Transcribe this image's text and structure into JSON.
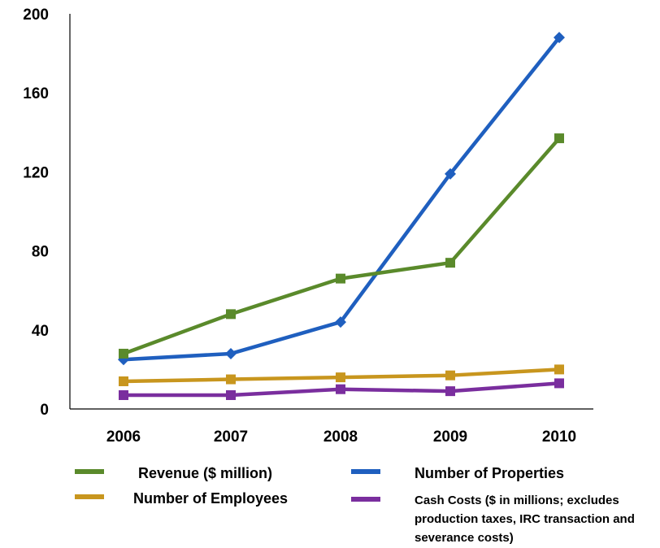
{
  "chart_data": {
    "type": "line",
    "x": [
      "2006",
      "2007",
      "2008",
      "2009",
      "2010"
    ],
    "ylim": [
      0,
      200
    ],
    "yticks": [
      0,
      40,
      80,
      120,
      160,
      200
    ],
    "grid": false,
    "legend_position": "bottom",
    "series": [
      {
        "name": "Revenue ($ million)",
        "color": "#5a8a2b",
        "marker": "square",
        "values": [
          28,
          48,
          66,
          74,
          137
        ]
      },
      {
        "name": "Number of Properties",
        "color": "#1f5fbf",
        "marker": "diamond",
        "values": [
          25,
          28,
          44,
          119,
          188
        ]
      },
      {
        "name": "Number of  Employees",
        "color": "#c8961e",
        "marker": "square",
        "values": [
          14,
          15,
          16,
          17,
          20
        ]
      },
      {
        "name": "Cash Costs ($ in millions; excludes production taxes, IRC transaction and severance costs)",
        "color": "#7a2e9e",
        "marker": "square",
        "values": [
          7,
          7,
          10,
          9,
          13
        ]
      }
    ]
  }
}
